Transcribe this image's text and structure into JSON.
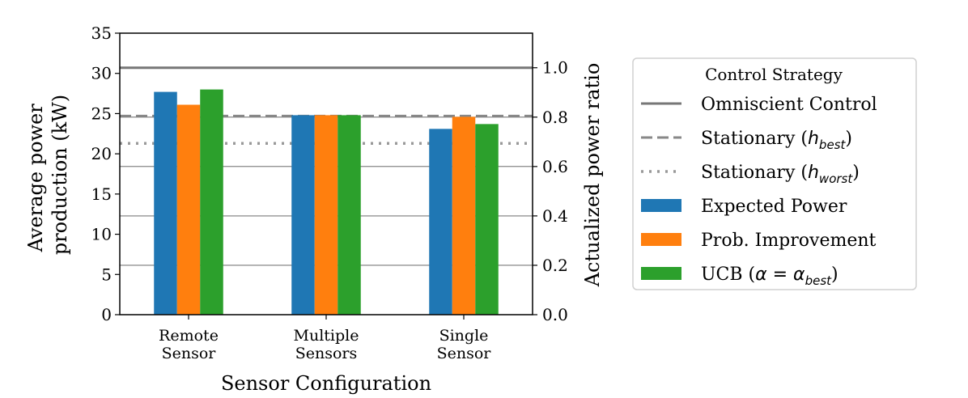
{
  "chart_data": {
    "type": "bar",
    "xlabel": "Sensor Configuration",
    "ylabel_lines": [
      "Average power",
      "production (kW)"
    ],
    "y2label": "Actualized power ratio",
    "categories": [
      [
        "Remote",
        "Sensor"
      ],
      [
        "Multiple",
        "Sensors"
      ],
      [
        "Single",
        "Sensor"
      ]
    ],
    "ylim": [
      0,
      35
    ],
    "yticks": [
      "0",
      "5",
      "10",
      "15",
      "20",
      "25",
      "30",
      "35"
    ],
    "y2lim": [
      0,
      1.14
    ],
    "y2ticks": [
      "0.0",
      "0.2",
      "0.4",
      "0.6",
      "0.8",
      "1.0"
    ],
    "series": [
      {
        "name": "Expected Power",
        "color": "#1f77b4",
        "values": [
          27.7,
          24.8,
          23.1
        ]
      },
      {
        "name": "Prob. Improvement",
        "color": "#ff7f0e",
        "values": [
          26.1,
          24.8,
          24.6
        ]
      },
      {
        "name": "UCB (α = α_best)",
        "color": "#2ca02c",
        "values": [
          28.0,
          24.8,
          23.7
        ]
      }
    ],
    "reference_lines": [
      {
        "name": "Omniscient Control",
        "value": 30.7,
        "style": "solid",
        "color": "#777777"
      },
      {
        "name": "Stationary (h_best)",
        "value": 24.7,
        "style": "dashed",
        "color": "#888888"
      },
      {
        "name": "Stationary (h_worst)",
        "value": 21.3,
        "style": "dotted",
        "color": "#999999"
      }
    ],
    "legend": {
      "title": "Control Strategy",
      "placement": "right",
      "entries": [
        {
          "label": "Omniscient Control",
          "kind": "line-solid",
          "color": "#777777"
        },
        {
          "label_main": "Stationary (",
          "label_var": "h",
          "label_sub": "best",
          "label_end": ")",
          "kind": "line-dashed",
          "color": "#888888"
        },
        {
          "label_main": "Stationary (",
          "label_var": "h",
          "label_sub": "worst",
          "label_end": ")",
          "kind": "line-dotted",
          "color": "#999999"
        },
        {
          "label": "Expected Power",
          "kind": "patch",
          "color": "#1f77b4"
        },
        {
          "label": "Prob. Improvement",
          "kind": "patch",
          "color": "#ff7f0e"
        },
        {
          "label_main": "UCB (",
          "label_var": "α = α",
          "label_sub": "best",
          "label_end": ")",
          "kind": "patch",
          "color": "#2ca02c"
        }
      ]
    }
  }
}
